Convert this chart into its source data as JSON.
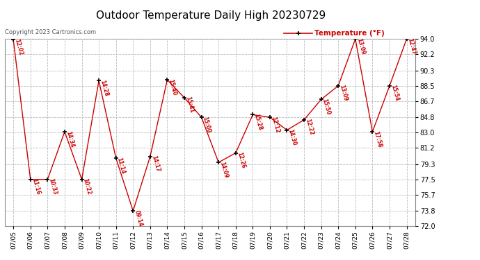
{
  "title": "Outdoor Temperature Daily High 20230729",
  "copyright": "Copyright 2023 Cartronics.com",
  "legend_label": "Temperature (°F)",
  "background_color": "#ffffff",
  "plot_bg_color": "#ffffff",
  "line_color": "#cc0000",
  "marker_color": "#000000",
  "label_color": "#cc0000",
  "grid_color": "#bbbbbb",
  "dates": [
    "07/05",
    "07/06",
    "07/07",
    "07/08",
    "07/09",
    "07/10",
    "07/11",
    "07/12",
    "07/13",
    "07/14",
    "07/15",
    "07/16",
    "07/17",
    "07/18",
    "07/19",
    "07/20",
    "07/21",
    "07/22",
    "07/23",
    "07/24",
    "07/25",
    "07/26",
    "07/27",
    "07/28"
  ],
  "temps": [
    93.9,
    77.5,
    77.5,
    83.1,
    77.5,
    89.1,
    80.0,
    73.8,
    80.2,
    89.2,
    87.1,
    84.8,
    79.5,
    80.6,
    85.1,
    84.8,
    83.3,
    84.5,
    86.9,
    88.5,
    94.0,
    83.1,
    88.5,
    94.0
  ],
  "times": [
    "12:02",
    "11:16",
    "10:33",
    "14:34",
    "10:22",
    "14:28",
    "11:14",
    "09:14",
    "14:17",
    "15:40",
    "15:41",
    "15:00",
    "14:09",
    "12:26",
    "15:28",
    "12:12",
    "14:30",
    "12:22",
    "15:50",
    "13:09",
    "13:09",
    "17:58",
    "15:54",
    "12:47"
  ],
  "ylim": [
    72.0,
    94.0
  ],
  "yticks": [
    72.0,
    73.8,
    75.7,
    77.5,
    79.3,
    81.2,
    83.0,
    84.8,
    86.7,
    88.5,
    90.3,
    92.2,
    94.0
  ]
}
